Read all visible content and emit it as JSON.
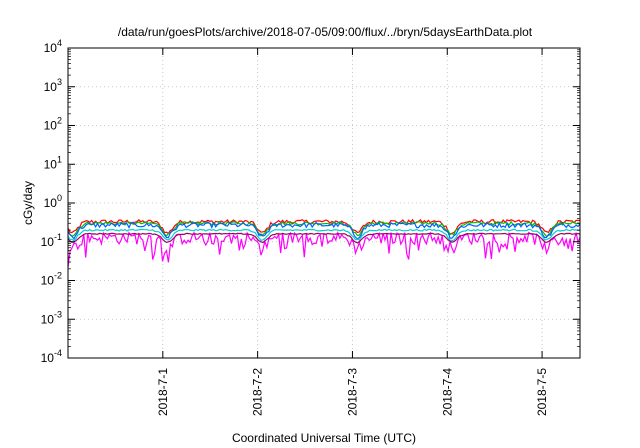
{
  "chart_data": {
    "type": "line",
    "title": "/data/run/goesPlots/archive/2018-07-05/09:00/flux/../bryn/5daysEarthData.plot",
    "xlabel": "Coordinated Universal Time (UTC)",
    "ylabel": "cGy/day",
    "yscale": "log",
    "ylim": [
      0.0001,
      10000
    ],
    "xlim": [
      -1.0,
      4.4
    ],
    "y_ticks": [
      {
        "value": 0.0001,
        "base": "10",
        "exp": "-4"
      },
      {
        "value": 0.001,
        "base": "10",
        "exp": "-3"
      },
      {
        "value": 0.01,
        "base": "10",
        "exp": "-2"
      },
      {
        "value": 0.1,
        "base": "10",
        "exp": "-1"
      },
      {
        "value": 1,
        "base": "10",
        "exp": "0"
      },
      {
        "value": 10,
        "base": "10",
        "exp": "1"
      },
      {
        "value": 100,
        "base": "10",
        "exp": "2"
      },
      {
        "value": 1000,
        "base": "10",
        "exp": "3"
      },
      {
        "value": 10000,
        "base": "10",
        "exp": "4"
      }
    ],
    "x_ticks": [
      {
        "value": 0,
        "label": "2018-7-1"
      },
      {
        "value": 1,
        "label": "2018-7-2"
      },
      {
        "value": 2,
        "label": "2018-7-3"
      },
      {
        "value": 3,
        "label": "2018-7-4"
      },
      {
        "value": 4,
        "label": "2018-7-5"
      }
    ],
    "grid": true,
    "series": [
      {
        "color": "#ff0000",
        "base": 0.33,
        "dip": 0.5,
        "noise": 0.12
      },
      {
        "color": "#00c000",
        "base": 0.3,
        "dip": 0.5,
        "noise": 0.1
      },
      {
        "color": "#0060ff",
        "base": 0.27,
        "dip": 0.5,
        "noise": 0.14
      },
      {
        "color": "#ff00ff",
        "base": 0.13,
        "dip": 0.45,
        "noise": 0.35
      },
      {
        "color": "#00d0d0",
        "base": 0.2,
        "dip": 0.45,
        "noise": 0.05
      },
      {
        "color": "#a00060",
        "base": 0.16,
        "dip": 0.4,
        "noise": 0.03
      }
    ]
  }
}
